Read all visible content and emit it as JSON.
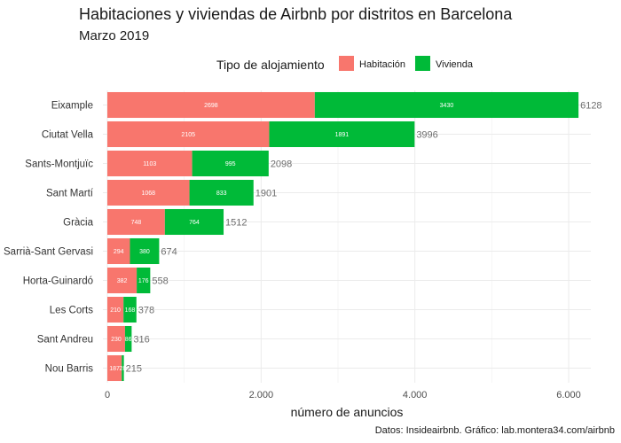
{
  "chart_data": {
    "type": "bar",
    "orientation": "horizontal",
    "stacked": true,
    "title": "Habitaciones y viviendas de Airbnb por distritos en Barcelona",
    "subtitle": "Marzo 2019",
    "xlabel": "número de anuncios",
    "ylabel": "",
    "caption": "Datos: Insideairbnb. Gráfico: lab.montera34.com/airbnb",
    "legend": {
      "title": "Tipo de alojamiento",
      "placement": "top"
    },
    "xlim": [
      0,
      6300
    ],
    "xticks": [
      {
        "value": 0,
        "label": "0"
      },
      {
        "value": 2000,
        "label": "2.000"
      },
      {
        "value": 4000,
        "label": "4.000"
      },
      {
        "value": 6000,
        "label": "6.000"
      }
    ],
    "grid": true,
    "categories": [
      "Eixample",
      "Ciutat Vella",
      "Sants-Montjuïc",
      "Sant Martí",
      "Gràcia",
      "Sarrià-Sant Gervasi",
      "Horta-Guinardó",
      "Les Corts",
      "Sant Andreu",
      "Nou Barris"
    ],
    "series": [
      {
        "name": "Habitación",
        "color": "#f8766d",
        "values": [
          2698,
          2105,
          1103,
          1068,
          748,
          294,
          382,
          210,
          230,
          187
        ]
      },
      {
        "name": "Vivienda",
        "color": "#00ba38",
        "values": [
          3430,
          1891,
          995,
          833,
          764,
          380,
          176,
          168,
          86,
          28
        ]
      }
    ],
    "totals": [
      6128,
      3996,
      2098,
      1901,
      1512,
      674,
      558,
      378,
      316,
      215
    ]
  }
}
